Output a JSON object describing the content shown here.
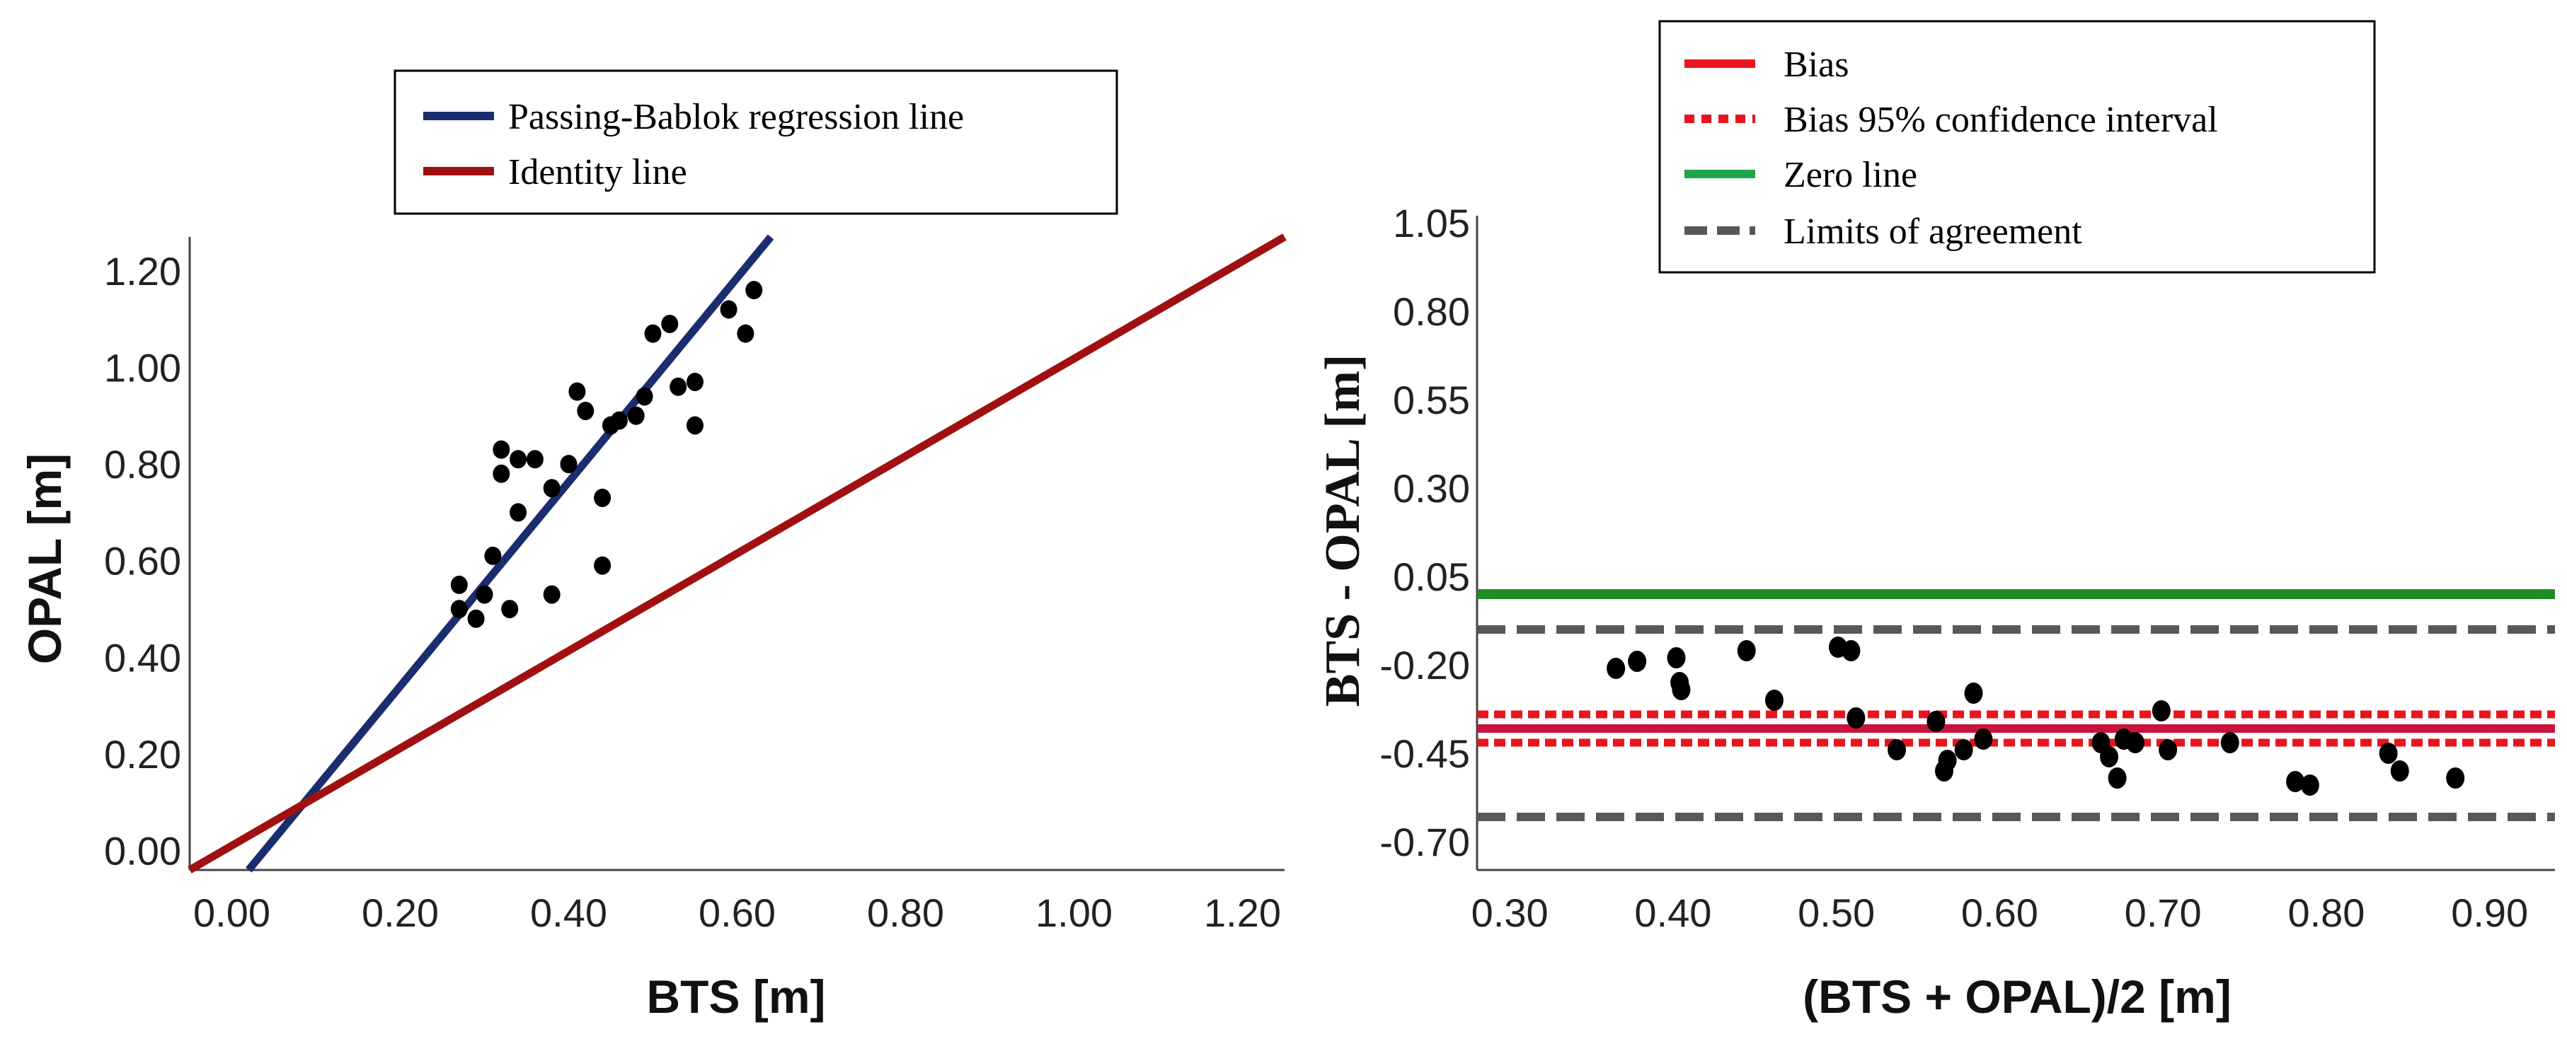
{
  "chart_data": [
    {
      "type": "scatter",
      "name": "passing-bablok",
      "xlabel": "BTS  [m]",
      "ylabel": "OPAL  [m]",
      "xlim": [
        -0.05,
        1.25
      ],
      "ylim": [
        -0.04,
        1.27
      ],
      "x_ticks": [
        "0.00",
        "0.20",
        "0.40",
        "0.60",
        "0.80",
        "1.00",
        "1.20"
      ],
      "x_tick_values": [
        0.0,
        0.2,
        0.4,
        0.6,
        0.8,
        1.0,
        1.2
      ],
      "y_ticks": [
        "0.00",
        "0.20",
        "0.40",
        "0.60",
        "0.80",
        "1.00",
        "1.20"
      ],
      "y_tick_values": [
        0.0,
        0.2,
        0.4,
        0.6,
        0.8,
        1.0,
        1.2
      ],
      "legend": [
        {
          "label": "Passing-Bablok regression line",
          "color": "#1a2d6e",
          "style": "solid"
        },
        {
          "label": "Identity line",
          "color": "#a01010",
          "style": "solid"
        }
      ],
      "lines": [
        {
          "name": "Passing-Bablok regression line",
          "color": "#1a2d6e",
          "x": [
            0.02,
            0.64
          ],
          "y": [
            -0.04,
            1.27
          ]
        },
        {
          "name": "Identity line",
          "color": "#a01010",
          "x": [
            -0.05,
            1.25
          ],
          "y": [
            -0.04,
            1.27
          ]
        }
      ],
      "points": {
        "color": "#000000",
        "x": [
          0.27,
          0.27,
          0.29,
          0.3,
          0.31,
          0.32,
          0.32,
          0.33,
          0.34,
          0.34,
          0.36,
          0.38,
          0.38,
          0.4,
          0.41,
          0.42,
          0.44,
          0.44,
          0.45,
          0.46,
          0.48,
          0.49,
          0.5,
          0.52,
          0.53,
          0.55,
          0.55,
          0.59,
          0.61,
          0.62
        ],
        "y": [
          0.5,
          0.55,
          0.48,
          0.53,
          0.61,
          0.78,
          0.83,
          0.5,
          0.7,
          0.81,
          0.81,
          0.53,
          0.75,
          0.8,
          0.95,
          0.91,
          0.59,
          0.73,
          0.88,
          0.89,
          0.9,
          0.94,
          1.07,
          1.09,
          0.96,
          0.88,
          0.97,
          1.12,
          1.07,
          1.16
        ]
      }
    },
    {
      "type": "scatter",
      "name": "bland-altman",
      "xlabel": "(BTS + OPAL)/2  [m]",
      "ylabel": "BTS - OPAL  [m]",
      "xlim": [
        0.28,
        0.94
      ],
      "ylim": [
        -0.78,
        1.07
      ],
      "x_ticks": [
        "0.30",
        "0.40",
        "0.50",
        "0.60",
        "0.70",
        "0.80",
        "0.90"
      ],
      "x_tick_values": [
        0.3,
        0.4,
        0.5,
        0.6,
        0.7,
        0.8,
        0.9
      ],
      "y_ticks": [
        "1.05",
        "0.80",
        "0.55",
        "0.30",
        "0.05",
        "-0.20",
        "-0.45",
        "-0.70"
      ],
      "y_tick_values": [
        1.05,
        0.8,
        0.55,
        0.3,
        0.05,
        -0.2,
        -0.45,
        -0.7
      ],
      "legend": [
        {
          "label": "Bias",
          "color": "#e8141e",
          "style": "solid"
        },
        {
          "label": "Bias 95% confidence interval",
          "color": "#e8141e",
          "style": "dotted"
        },
        {
          "label": "Zero line",
          "color": "#1ea54a",
          "style": "solid"
        },
        {
          "label": "Limits of agreement",
          "color": "#555a55",
          "style": "dashed"
        }
      ],
      "hlines": [
        {
          "name": "Zero line",
          "value": 0.0,
          "color": "#228b22",
          "style": "solid"
        },
        {
          "name": "Upper limit of agreement",
          "value": -0.1,
          "color": "#555a55",
          "style": "dashed"
        },
        {
          "name": "Bias upper CI",
          "value": -0.34,
          "color": "#e8141e",
          "style": "dotted"
        },
        {
          "name": "Bias",
          "value": -0.38,
          "color": "#c8143c",
          "style": "solid"
        },
        {
          "name": "Bias lower CI",
          "value": -0.42,
          "color": "#e8141e",
          "style": "dotted"
        },
        {
          "name": "Lower limit of agreement",
          "value": -0.63,
          "color": "#555a55",
          "style": "dashed"
        }
      ],
      "points": {
        "color": "#000000",
        "x": [
          0.365,
          0.378,
          0.402,
          0.404,
          0.405,
          0.445,
          0.462,
          0.501,
          0.509,
          0.512,
          0.537,
          0.561,
          0.566,
          0.568,
          0.578,
          0.584,
          0.59,
          0.662,
          0.667,
          0.672,
          0.676,
          0.683,
          0.699,
          0.703,
          0.741,
          0.781,
          0.79,
          0.838,
          0.845,
          0.879
        ],
        "y": [
          -0.21,
          -0.19,
          -0.18,
          -0.25,
          -0.27,
          -0.16,
          -0.3,
          -0.15,
          -0.16,
          -0.35,
          -0.44,
          -0.36,
          -0.5,
          -0.47,
          -0.44,
          -0.28,
          -0.41,
          -0.42,
          -0.46,
          -0.52,
          -0.41,
          -0.42,
          -0.33,
          -0.44,
          -0.42,
          -0.53,
          -0.54,
          -0.45,
          -0.5,
          -0.52
        ]
      }
    }
  ]
}
